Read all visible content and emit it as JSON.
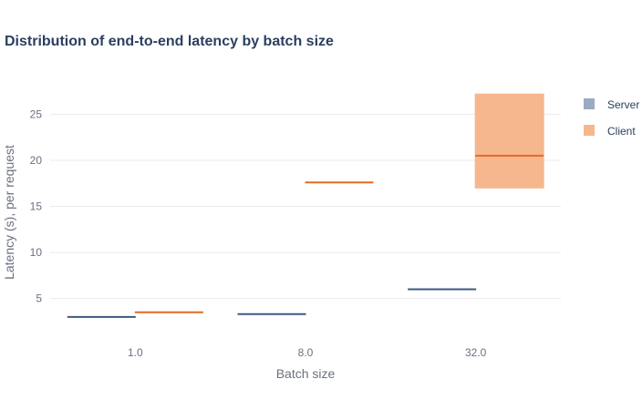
{
  "chart_data": {
    "type": "box",
    "title": "Distribution of end-to-end latency by batch size",
    "xlabel": "Batch size",
    "ylabel": "Latency (s), per request",
    "categories": [
      "1.0",
      "8.0",
      "32.0"
    ],
    "ylim": [
      1.5,
      29
    ],
    "yticks": [
      5,
      10,
      15,
      20,
      25
    ],
    "grid": true,
    "legend_position": "right",
    "series": [
      {
        "name": "Server",
        "fill": "#9aaac4",
        "line": "#3d5a80",
        "boxes": [
          {
            "category": "1.0",
            "q1": 3.0,
            "median": 3.0,
            "q3": 3.0
          },
          {
            "category": "8.0",
            "q1": 3.3,
            "median": 3.3,
            "q3": 3.3
          },
          {
            "category": "32.0",
            "q1": 6.0,
            "median": 6.0,
            "q3": 6.0
          }
        ]
      },
      {
        "name": "Client",
        "fill": "#f7b78e",
        "line": "#e06c25",
        "boxes": [
          {
            "category": "1.0",
            "q1": 3.5,
            "median": 3.5,
            "q3": 3.5
          },
          {
            "category": "8.0",
            "q1": 17.6,
            "median": 17.6,
            "q3": 17.6
          },
          {
            "category": "32.0",
            "q1": 17.0,
            "median": 20.5,
            "q3": 27.2
          }
        ]
      }
    ]
  }
}
